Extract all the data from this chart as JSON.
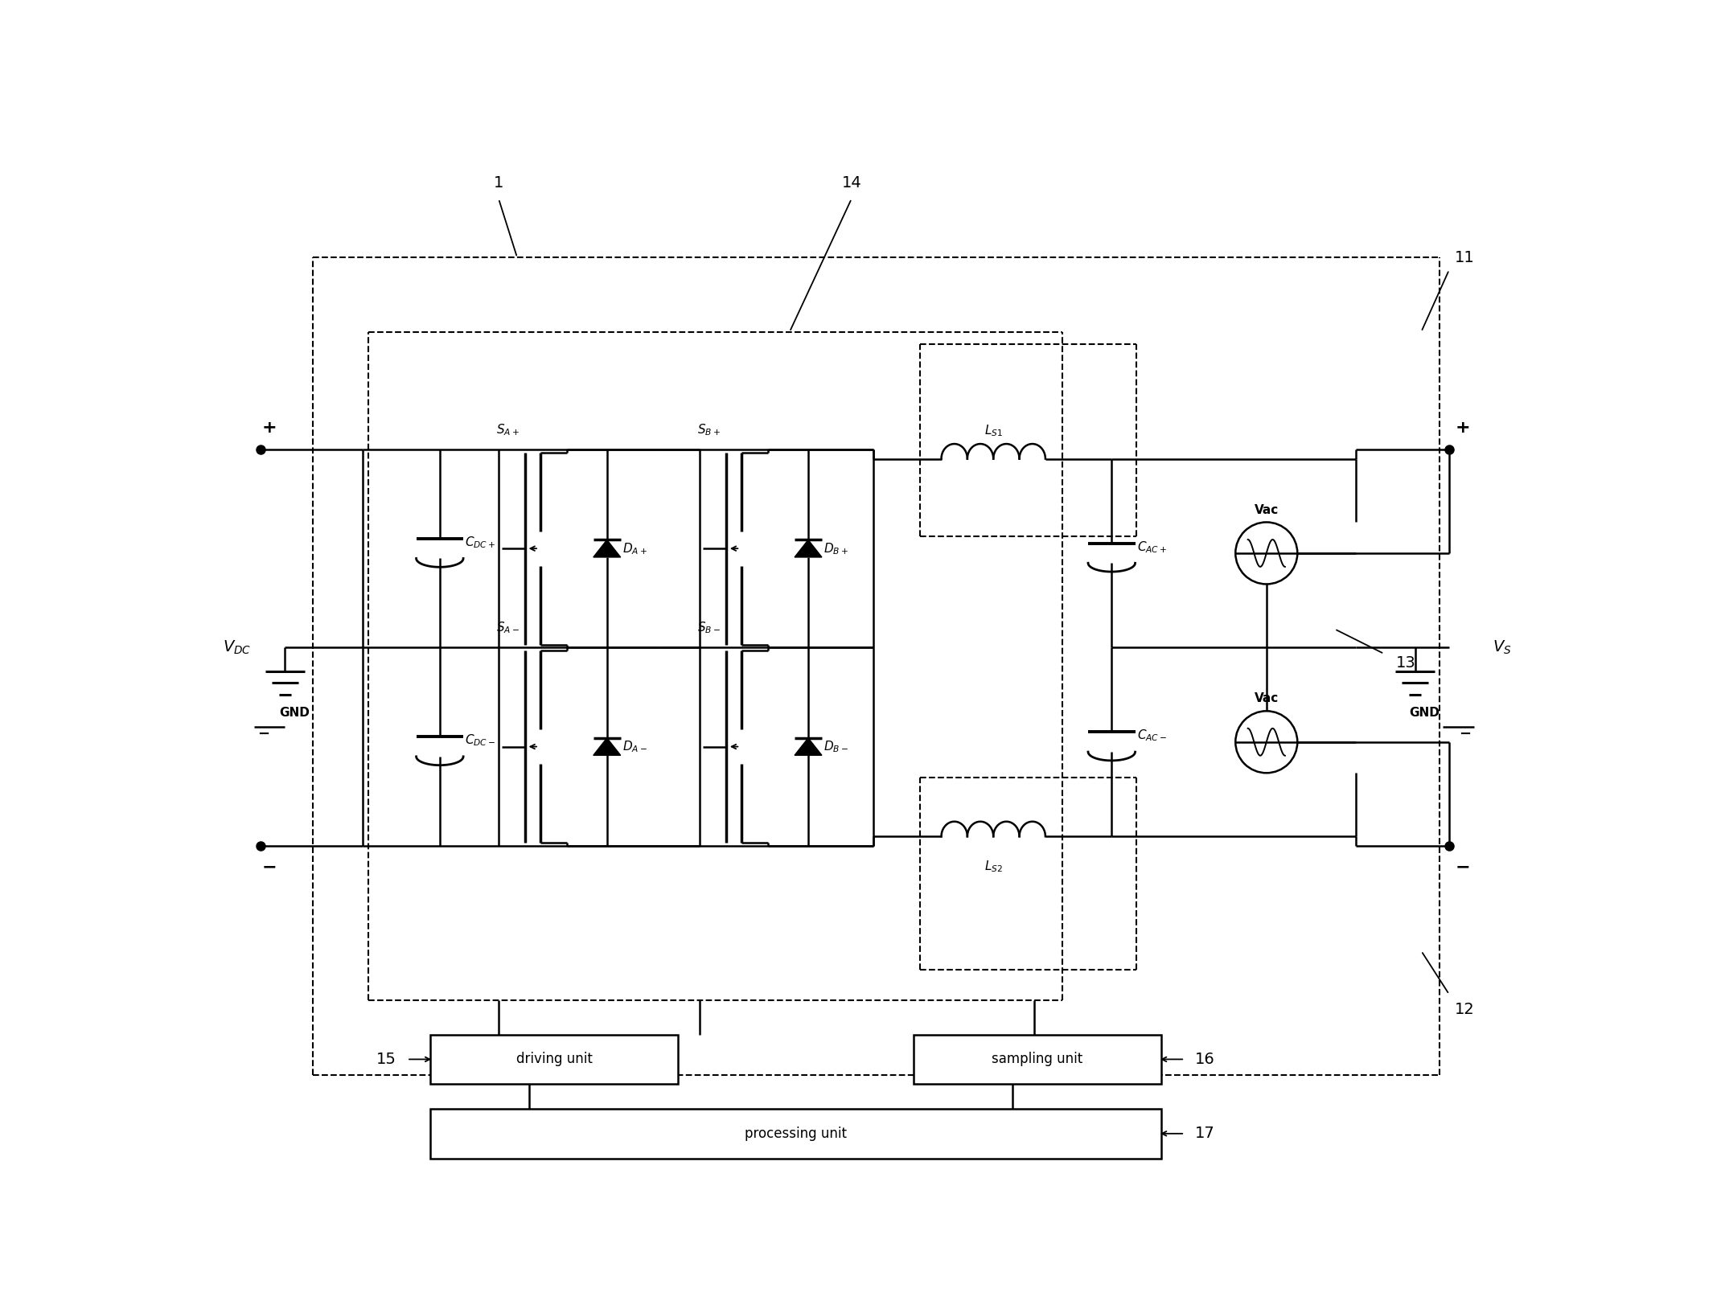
{
  "bg_color": "#ffffff",
  "fig_width": 21.45,
  "fig_height": 16.23,
  "labels": {
    "VDC": "$V_{DC}$",
    "VS": "$V_S$",
    "GND_left": "GND",
    "GND_right": "GND",
    "label1": "1",
    "label14": "14",
    "label11": "11",
    "label12": "12",
    "label13": "13",
    "label15": "15",
    "label16": "16",
    "label17": "17",
    "CDC_plus": "$C_{DC+}$",
    "CDC_minus": "$C_{DC-}$",
    "SA_plus": "$S_{A+}$",
    "SA_minus": "$S_{A-}$",
    "SB_plus": "$S_{B+}$",
    "SB_minus": "$S_{B-}$",
    "DA_plus": "$D_{A+}$",
    "DA_minus": "$D_{A-}$",
    "DB_plus": "$D_{B+}$",
    "DB_minus": "$D_{B-}$",
    "LS1": "$L_{S1}$",
    "LS2": "$L_{S2}$",
    "CAC_plus": "$C_{AC+}$",
    "CAC_minus": "$C_{AC-}$",
    "Vac_plus": "Vac",
    "Vac_minus": "Vac",
    "driving_unit": "driving unit",
    "sampling_unit": "sampling unit",
    "processing_unit": "processing unit"
  }
}
